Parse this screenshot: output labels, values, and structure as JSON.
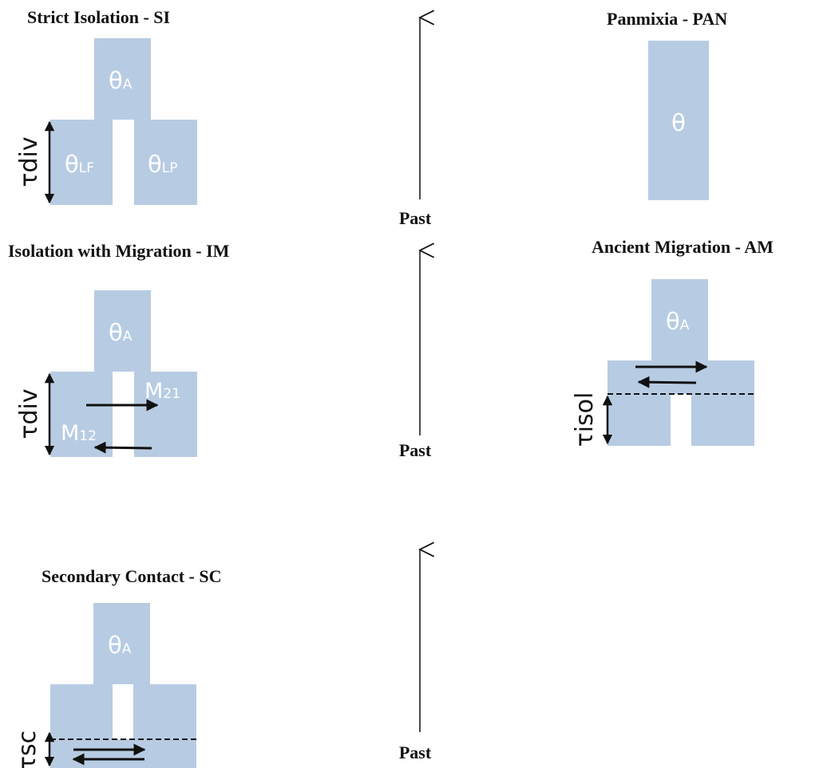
{
  "models": {
    "si": {
      "title": "Strict Isolation - SI",
      "theta_anc": "θ",
      "anc_sub": "A",
      "theta_left": "θ",
      "left_sub": "LF",
      "theta_right": "θ",
      "right_sub": "LP",
      "tau": "τdiv"
    },
    "pan": {
      "title": "Panmixia - PAN",
      "theta": "θ"
    },
    "im": {
      "title": "Isolation with Migration  - IM",
      "theta_anc": "θ",
      "anc_sub": "A",
      "m21": "M",
      "m21_sub": "21",
      "m12": "M",
      "m12_sub": "12",
      "tau": "τdiv"
    },
    "am": {
      "title": "Ancient Migration  - AM",
      "theta_anc": "θ",
      "anc_sub": "A",
      "tau": "τisol"
    },
    "sc": {
      "title": "Secondary Contact  - SC",
      "theta_anc": "θ",
      "anc_sub": "A",
      "tau": "τsc"
    }
  },
  "timeline": {
    "label": "Past"
  },
  "colors": {
    "population": "#b7cce3",
    "text_on_population": "#ffffff",
    "ink": "#111111"
  }
}
